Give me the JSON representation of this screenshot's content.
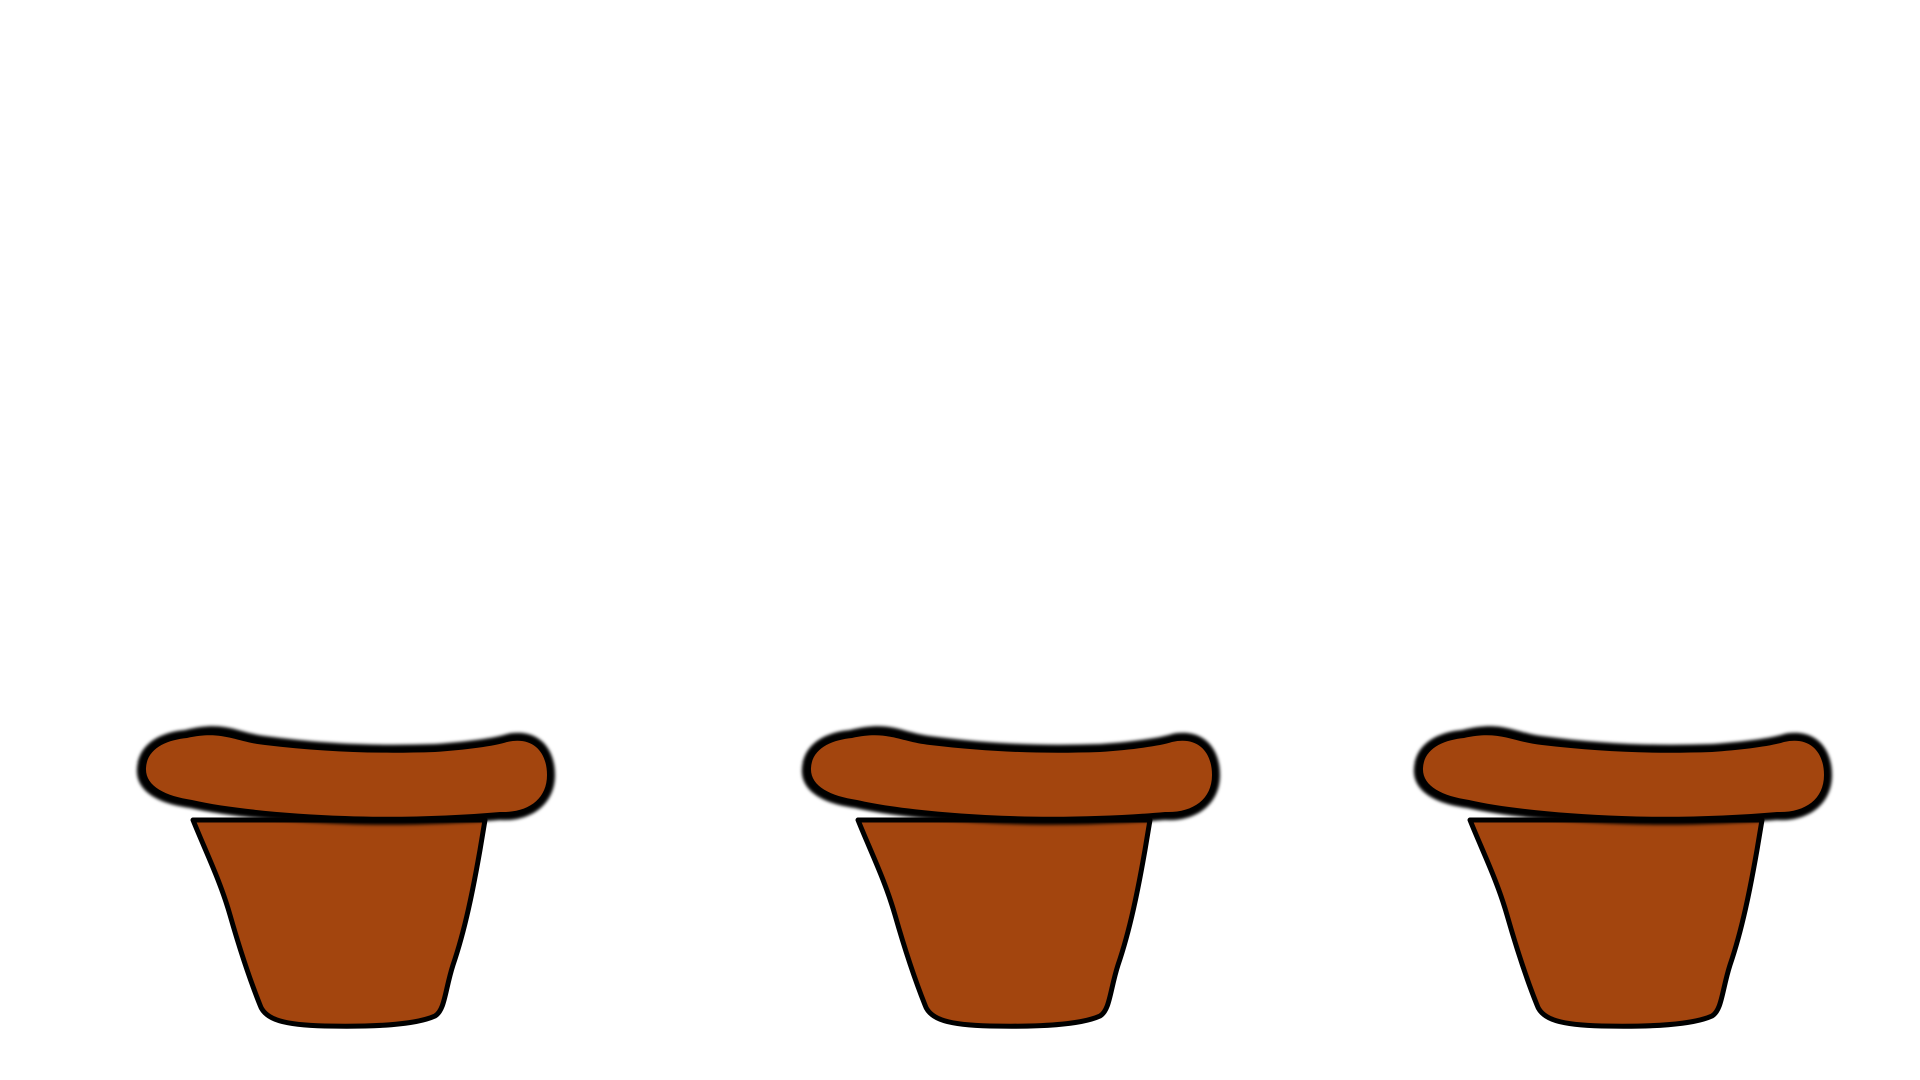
{
  "scene": {
    "background_color": "#ffffff",
    "pot_fill_color": "#a3450e",
    "pot_outline_color": "#000000",
    "pots": [
      {
        "icon": "flower-pot-icon"
      },
      {
        "icon": "flower-pot-icon"
      },
      {
        "icon": "flower-pot-icon"
      }
    ]
  }
}
